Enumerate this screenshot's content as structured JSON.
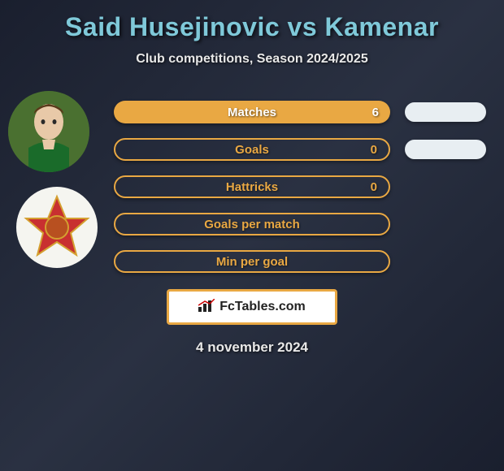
{
  "title": "Said Husejinovic vs Kamenar",
  "subtitle": "Club competitions, Season 2024/2025",
  "date": "4 november 2024",
  "footer_brand": "FcTables.com",
  "colors": {
    "accent": "#e9a843",
    "title": "#7fc9d9",
    "text_light": "#e8e8e8",
    "pill_bg": "#e8eef2",
    "bg_gradient_from": "#1a1f2e",
    "bg_gradient_to": "#2a3142"
  },
  "stats": [
    {
      "label": "Matches",
      "p1_value": "6",
      "p1_filled": true,
      "show_pill": true
    },
    {
      "label": "Goals",
      "p1_value": "0",
      "p1_filled": false,
      "show_pill": true
    },
    {
      "label": "Hattricks",
      "p1_value": "0",
      "p1_filled": false,
      "show_pill": false
    },
    {
      "label": "Goals per match",
      "p1_value": "",
      "p1_filled": false,
      "show_pill": false
    },
    {
      "label": "Min per goal",
      "p1_value": "",
      "p1_filled": false,
      "show_pill": false
    }
  ],
  "players": {
    "p1": {
      "name": "Said Husejinovic",
      "avatar_type": "photo"
    },
    "p2": {
      "name": "Kamenar",
      "avatar_type": "club-badge"
    }
  }
}
